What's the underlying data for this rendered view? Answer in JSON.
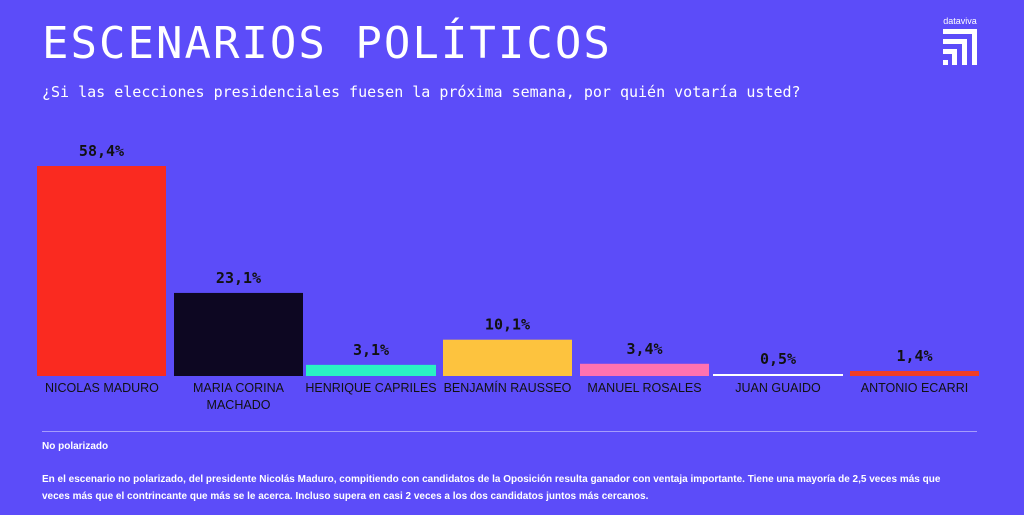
{
  "header": {
    "title": "ESCENARIOS POLÍTICOS",
    "subtitle": "¿Si las elecciones presidenciales fuesen la próxima semana, por quién votaría usted?",
    "brand": "dataviva"
  },
  "chart_data": {
    "type": "bar",
    "categories": [
      "NICOLAS MADURO",
      "MARIA CORINA MACHADO",
      "HENRIQUE CAPRILES",
      "BENJAMÍN RAUSSEO",
      "MANUEL ROSALES",
      "JUAN GUAIDO",
      "ANTONIO ECARRI"
    ],
    "category_lines": [
      [
        "NICOLAS MADURO"
      ],
      [
        "MARIA CORINA",
        "MACHADO"
      ],
      [
        "HENRIQUE CAPRILES"
      ],
      [
        "BENJAMÍN RAUSSEO"
      ],
      [
        "MANUEL ROSALES"
      ],
      [
        "JUAN GUAIDO"
      ],
      [
        "ANTONIO ECARRI"
      ]
    ],
    "values": [
      58.4,
      23.1,
      3.1,
      10.1,
      3.4,
      0.5,
      1.4
    ],
    "value_labels": [
      "58,4%",
      "23,1%",
      "3,1%",
      "10,1%",
      "3,4%",
      "0,5%",
      "1,4%"
    ],
    "colors": [
      "#fa2a20",
      "#0d0722",
      "#2af2c4",
      "#fdc33e",
      "#ff72b0",
      "#ffffff",
      "#f13d25"
    ],
    "ylim": [
      0,
      58.4
    ],
    "grid": false,
    "legend": "none"
  },
  "footer": {
    "note_title": "No polarizado",
    "note_text": "En el escenario no polarizado, del presidente Nicolás Maduro, compitiendo con candidatos de la Oposición resulta ganador con ventaja importante.  Tiene una mayoría de 2,5 veces más que veces más que el contrincante que más se le acerca. Incluso supera en casi 2 veces a los dos candidatos juntos más cercanos."
  }
}
